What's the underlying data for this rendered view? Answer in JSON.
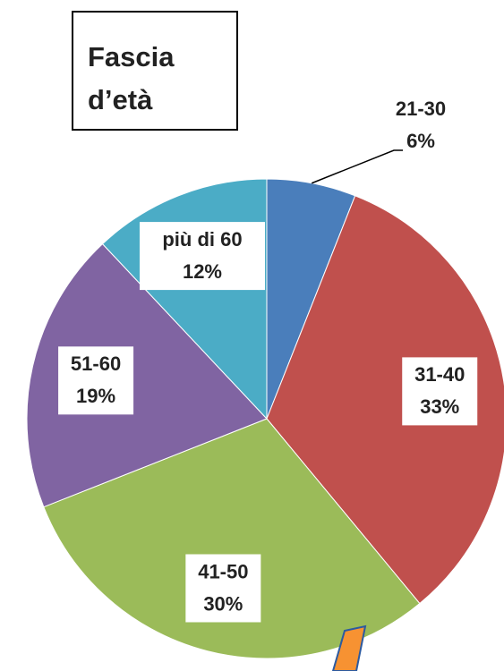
{
  "chart_data": {
    "type": "pie",
    "title": "Fascia d’età",
    "categories": [
      "21-30",
      "31-40",
      "41-50",
      "51-60",
      "più di 60"
    ],
    "values": [
      6,
      33,
      30,
      19,
      12
    ],
    "value_labels": [
      "6%",
      "33%",
      "30%",
      "19%",
      "12%"
    ],
    "colors": [
      "#4a7ebb",
      "#c0504d",
      "#9bbb59",
      "#8064a2",
      "#4bacc6"
    ]
  }
}
